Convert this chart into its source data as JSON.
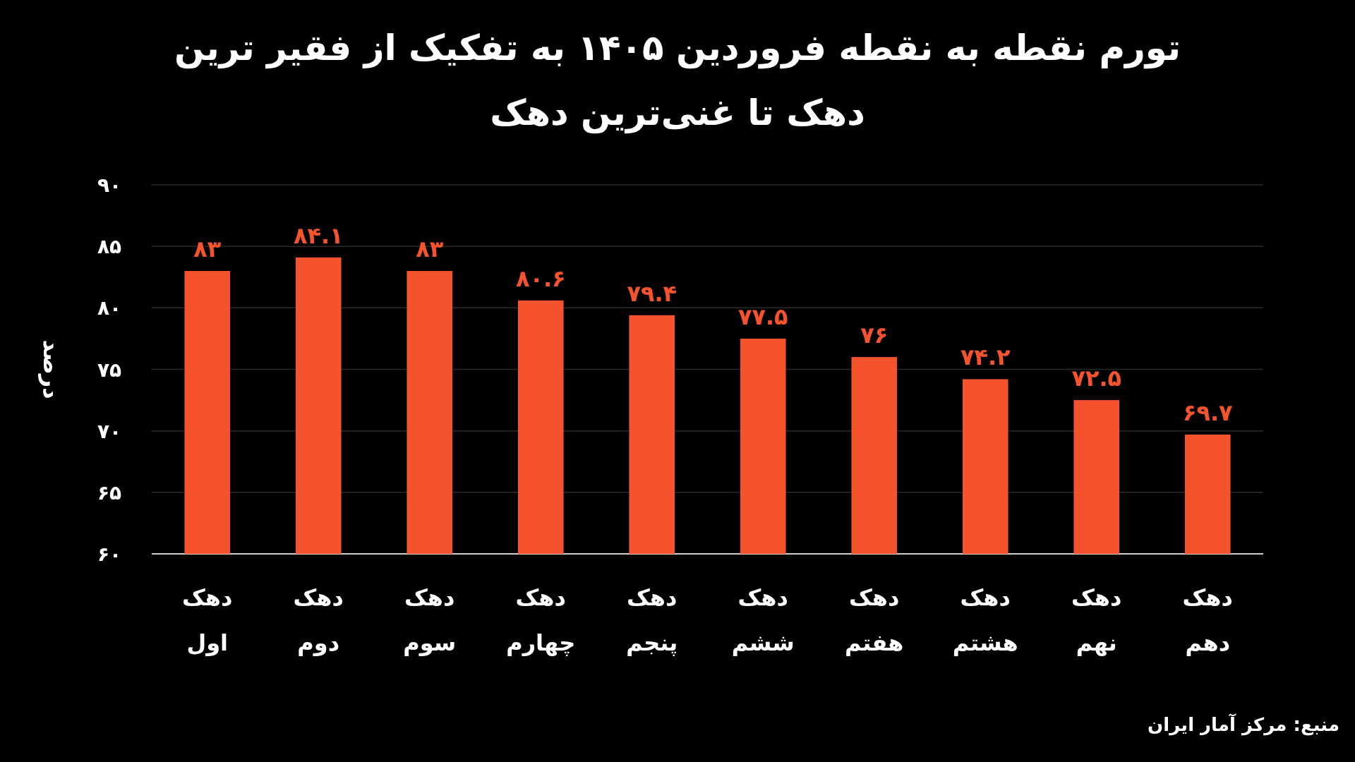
{
  "chart_data": {
    "type": "bar",
    "title": "تورم نقطه به نقطه فروردین ۱۴۰۵  به تفکیک از فقیر ترین دهک تا غنی‌ترین دهک",
    "ylabel": "درصد",
    "categories": [
      "دهک اول",
      "دهک دوم",
      "دهک سوم",
      "دهک چهارم",
      "دهک پنجم",
      "دهک ششم",
      "دهک هفتم",
      "دهک هشتم",
      "دهک نهم",
      "دهک دهم"
    ],
    "values": [
      83,
      84.1,
      83,
      80.6,
      79.4,
      77.5,
      76,
      74.2,
      72.5,
      69.7
    ],
    "value_labels": [
      "۸۳",
      "۸۴.۱",
      "۸۳",
      "۸۰.۶",
      "۷۹.۴",
      "۷۷.۵",
      "۷۶",
      "۷۴.۲",
      "۷۲.۵",
      "۶۹.۷"
    ],
    "color": "#f4532e",
    "ylim": [
      60,
      90
    ],
    "yticks": [
      {
        "value": 60,
        "label": "۶۰"
      },
      {
        "value": 65,
        "label": "۶۵"
      },
      {
        "value": 70,
        "label": "۷۰"
      },
      {
        "value": 75,
        "label": "۷۵"
      },
      {
        "value": 80,
        "label": "۸۰"
      },
      {
        "value": 85,
        "label": "۸۵"
      },
      {
        "value": 90,
        "label": "۹۰"
      }
    ],
    "grid": "y",
    "annotations": [
      "منبع: مرکز آمار ایران"
    ]
  }
}
